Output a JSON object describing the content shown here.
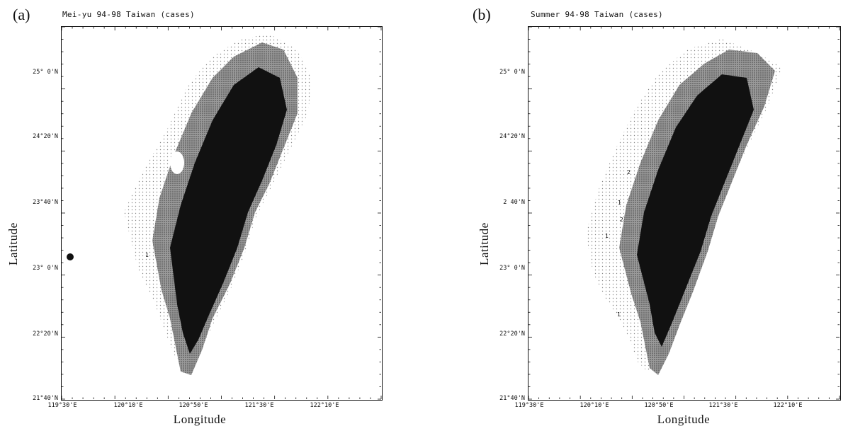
{
  "panels": [
    {
      "letter": "(a)",
      "title": "Mei-yu 94-98 Taiwan (cases)",
      "y_axis_title": "Latitude",
      "x_axis_title": "Longitude",
      "lat_ticks": [
        "25° 0'N",
        "24°20'N",
        "23°40'N",
        "23° 0'N",
        "22°20'N",
        "21°40'N"
      ],
      "lon_ticks": [
        "119°30'E",
        "120°10'E",
        "120°50'E",
        "121°30'E",
        "122°10'E"
      ],
      "contour_labels": [
        "1"
      ]
    },
    {
      "letter": "(b)",
      "title": "Summer 94-98 Taiwan (cases)",
      "y_axis_title": "Latitude",
      "x_axis_title": "Longitude",
      "lat_ticks": [
        "25° 0'N",
        "24°20'N",
        "2 40'N",
        "23° 0'N",
        "22°20'N",
        "21°40'N"
      ],
      "lon_ticks": [
        "119°30'E",
        "120°10'E",
        "120°50'E",
        "121°30'E",
        "122°10'E"
      ],
      "contour_labels": [
        "2",
        "1",
        "2",
        "1",
        "1"
      ]
    }
  ]
}
